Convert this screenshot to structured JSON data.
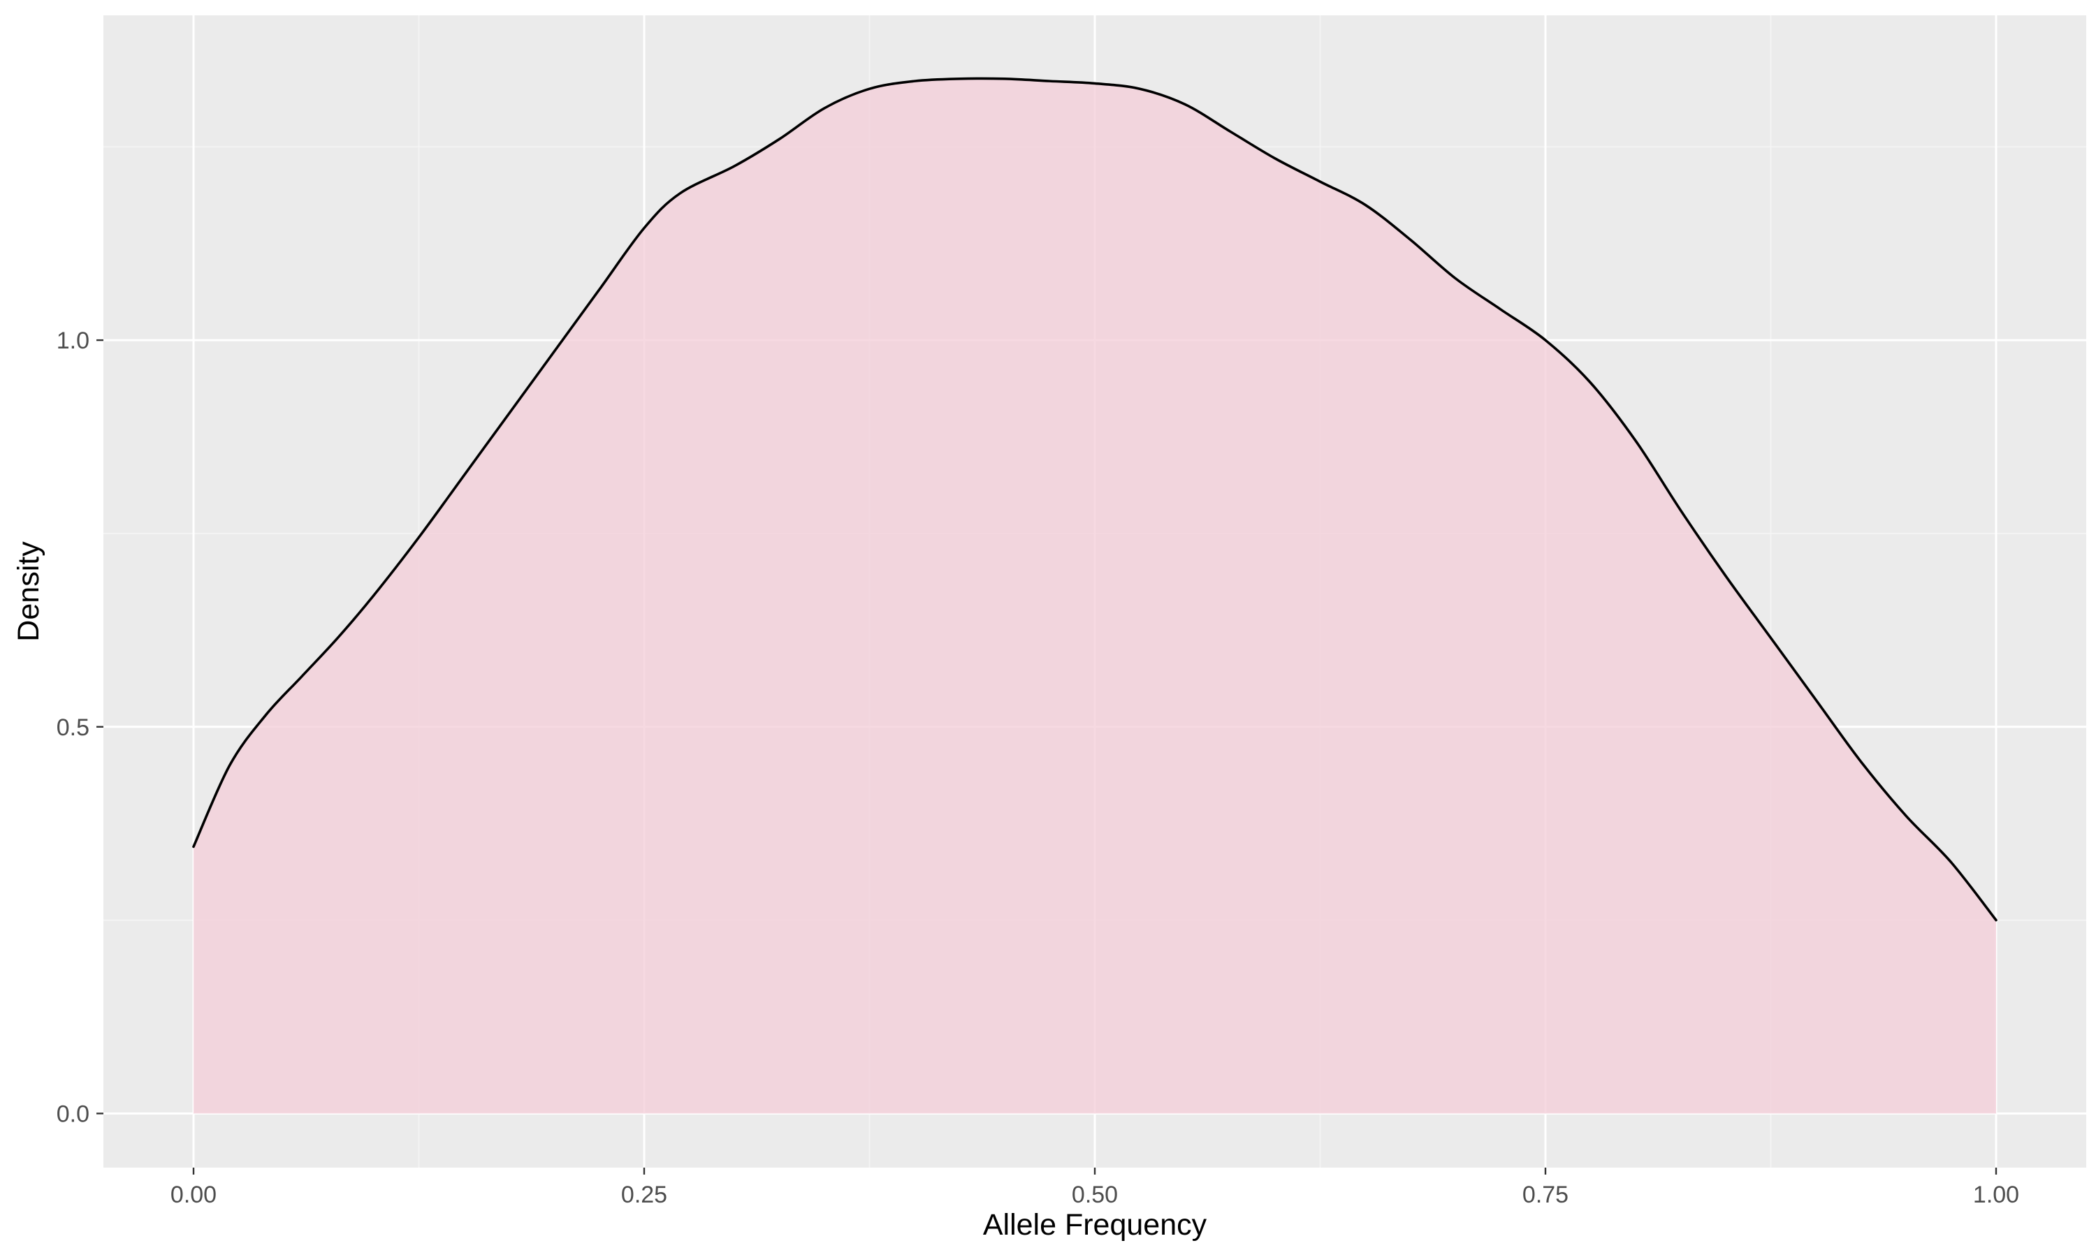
{
  "chart_data": {
    "type": "area",
    "title": "",
    "xlabel": "Allele Frequency",
    "ylabel": "Density",
    "xlim": [
      -0.05,
      1.05
    ],
    "ylim": [
      -0.07,
      1.42
    ],
    "x_ticks": [
      0.0,
      0.25,
      0.5,
      0.75,
      1.0
    ],
    "x_tick_labels": [
      "0.00",
      "0.25",
      "0.50",
      "0.75",
      "1.00"
    ],
    "y_ticks": [
      0.0,
      0.5,
      1.0
    ],
    "y_tick_labels": [
      "0.0",
      "0.5",
      "1.0"
    ],
    "grid": true,
    "legend": "none",
    "colors": {
      "panel_background": "#ebebeb",
      "grid_major": "#ffffff",
      "grid_minor": "#f5f5f5",
      "fill": "#f4cfd9",
      "fill_opacity": 0.8,
      "line": "#000000",
      "tick_text": "#4d4d4d",
      "title_text": "#000000"
    },
    "series": [
      {
        "x": [
          0.0,
          0.02,
          0.04,
          0.06,
          0.08,
          0.1,
          0.125,
          0.15,
          0.175,
          0.2,
          0.225,
          0.25,
          0.27,
          0.3,
          0.325,
          0.35,
          0.375,
          0.4,
          0.425,
          0.45,
          0.475,
          0.5,
          0.525,
          0.55,
          0.575,
          0.6,
          0.625,
          0.65,
          0.675,
          0.7,
          0.725,
          0.75,
          0.775,
          0.8,
          0.825,
          0.85,
          0.875,
          0.9,
          0.925,
          0.95,
          0.975,
          1.0
        ],
        "values": [
          0.345,
          0.45,
          0.515,
          0.565,
          0.615,
          0.67,
          0.745,
          0.825,
          0.905,
          0.985,
          1.065,
          1.145,
          1.19,
          1.225,
          1.26,
          1.3,
          1.325,
          1.335,
          1.338,
          1.338,
          1.335,
          1.332,
          1.325,
          1.305,
          1.27,
          1.235,
          1.205,
          1.175,
          1.13,
          1.08,
          1.04,
          1.0,
          0.945,
          0.87,
          0.78,
          0.695,
          0.615,
          0.535,
          0.455,
          0.385,
          0.325,
          0.25
        ]
      }
    ]
  }
}
